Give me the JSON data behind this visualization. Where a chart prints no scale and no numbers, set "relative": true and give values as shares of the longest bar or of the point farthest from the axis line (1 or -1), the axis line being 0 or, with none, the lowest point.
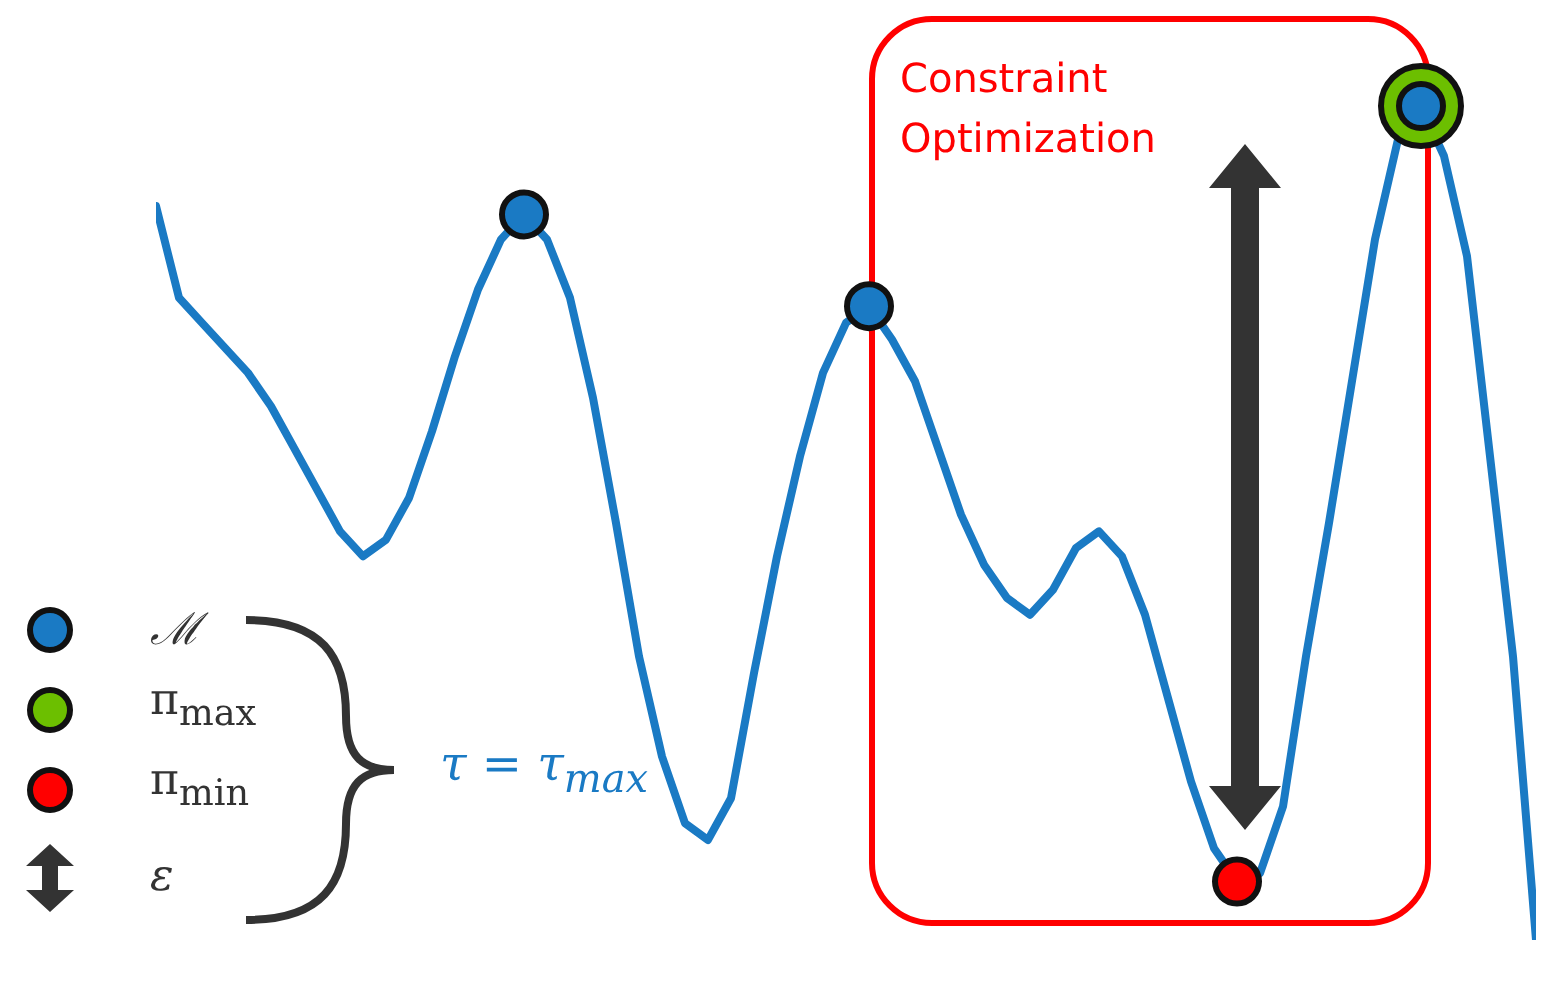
{
  "chart_data": {
    "type": "line",
    "relative": true,
    "color": "#1a7ac4",
    "categories": [
      null,
      null,
      null,
      null,
      null,
      null,
      null,
      null,
      null,
      null,
      null,
      null,
      null,
      null,
      null,
      null,
      null,
      null,
      null,
      null,
      null,
      null,
      null,
      null,
      null,
      null,
      null,
      null,
      null,
      null,
      null,
      null,
      null,
      null,
      null,
      null,
      null,
      null,
      null,
      null,
      null,
      null,
      null,
      null,
      null,
      null,
      null,
      null,
      null,
      null,
      null,
      null,
      null,
      null,
      null,
      null,
      null,
      null,
      null,
      null,
      null
    ],
    "values": [
      0.88,
      0.77,
      0.74,
      0.71,
      0.68,
      0.64,
      0.59,
      0.54,
      0.49,
      0.46,
      0.48,
      0.53,
      0.61,
      0.7,
      0.78,
      0.84,
      0.87,
      0.84,
      0.77,
      0.65,
      0.5,
      0.34,
      0.22,
      0.14,
      0.12,
      0.17,
      0.32,
      0.46,
      0.58,
      0.68,
      0.74,
      0.76,
      0.72,
      0.67,
      0.59,
      0.51,
      0.45,
      0.41,
      0.39,
      0.42,
      0.47,
      0.49,
      0.46,
      0.39,
      0.29,
      0.19,
      0.11,
      0.07,
      0.08,
      0.16,
      0.34,
      0.5,
      0.67,
      0.84,
      0.96,
      1,
      0.94,
      0.82,
      0.58,
      0.34,
      0
    ],
    "annotations": [
      "Constraint Optimization",
      "ℳ",
      "π$_{max}$",
      "π$_{min}$",
      "ε",
      "τ = τ$_{max}$"
    ]
  }
}
